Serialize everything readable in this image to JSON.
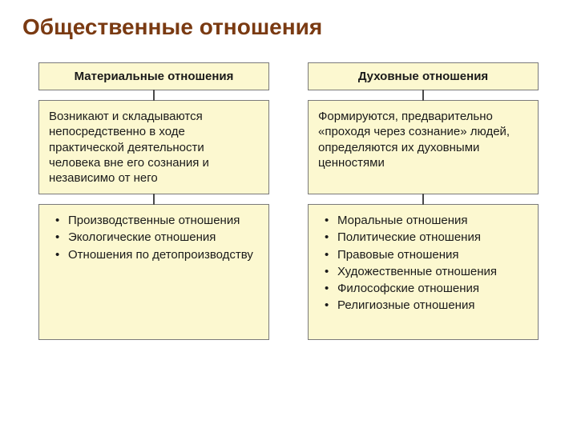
{
  "title": "Общественные отношения",
  "styling": {
    "page_bg": "#ffffff",
    "title_color": "#7a3a12",
    "title_fontsize": 28,
    "box_bg": "#fcf8d0",
    "box_border": "#7a7a7a",
    "text_color": "#1a1a1a",
    "body_fontsize": 15,
    "connector_color": "#4a4a4a",
    "column_gap": 48,
    "connector_height": 12
  },
  "diagram": {
    "type": "flowchart",
    "columns": [
      {
        "header": "Материальные отношения",
        "description": "Возникают и складываются непосредственно в ходе практической деятельности человека вне его сознания и независимо от него",
        "items": [
          "Производственные отношения",
          "Экологические отношения",
          "Отношения по детопроизводству"
        ]
      },
      {
        "header": "Духовные отношения",
        "description": "Формируются, предварительно «проходя через сознание» людей, определяются их духовными ценностями",
        "items": [
          "Моральные отношения",
          "Политические отношения",
          "Правовые отношения",
          "Художественные отношения",
          "Философские отношения",
          "Религиозные отношения"
        ]
      }
    ]
  }
}
